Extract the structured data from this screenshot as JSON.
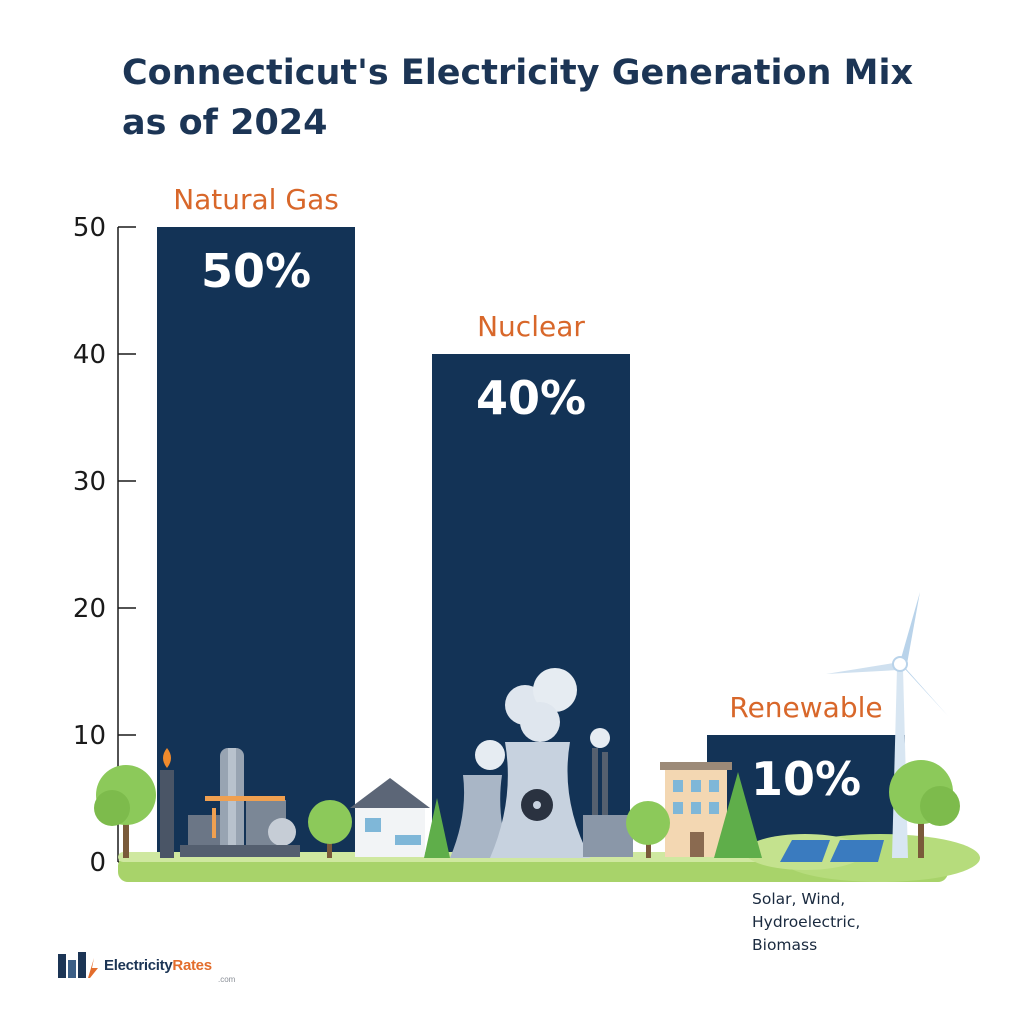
{
  "title_lines": [
    "Connecticut's Electricity Generation Mix",
    "as of 2024"
  ],
  "chart_data": {
    "type": "bar",
    "title": "Connecticut's Electricity Generation Mix as of 2024",
    "categories": [
      "Natural Gas",
      "Nuclear",
      "Renewable"
    ],
    "values": [
      50,
      40,
      10
    ],
    "data_labels": [
      "50%",
      "40%",
      "10%"
    ],
    "ylim": [
      0,
      50
    ],
    "yticks": [
      0,
      10,
      20,
      30,
      40,
      50
    ],
    "grid": false,
    "colors": {
      "bar": "#133356",
      "category_label": "#d8672a",
      "axis": "#1a1a1a"
    }
  },
  "renewable_note": [
    "Solar, Wind,",
    "Hydroelectric,",
    "Biomass"
  ],
  "logo": {
    "part1": "Electricity",
    "part2": "Rates",
    "suffix": ".com"
  }
}
